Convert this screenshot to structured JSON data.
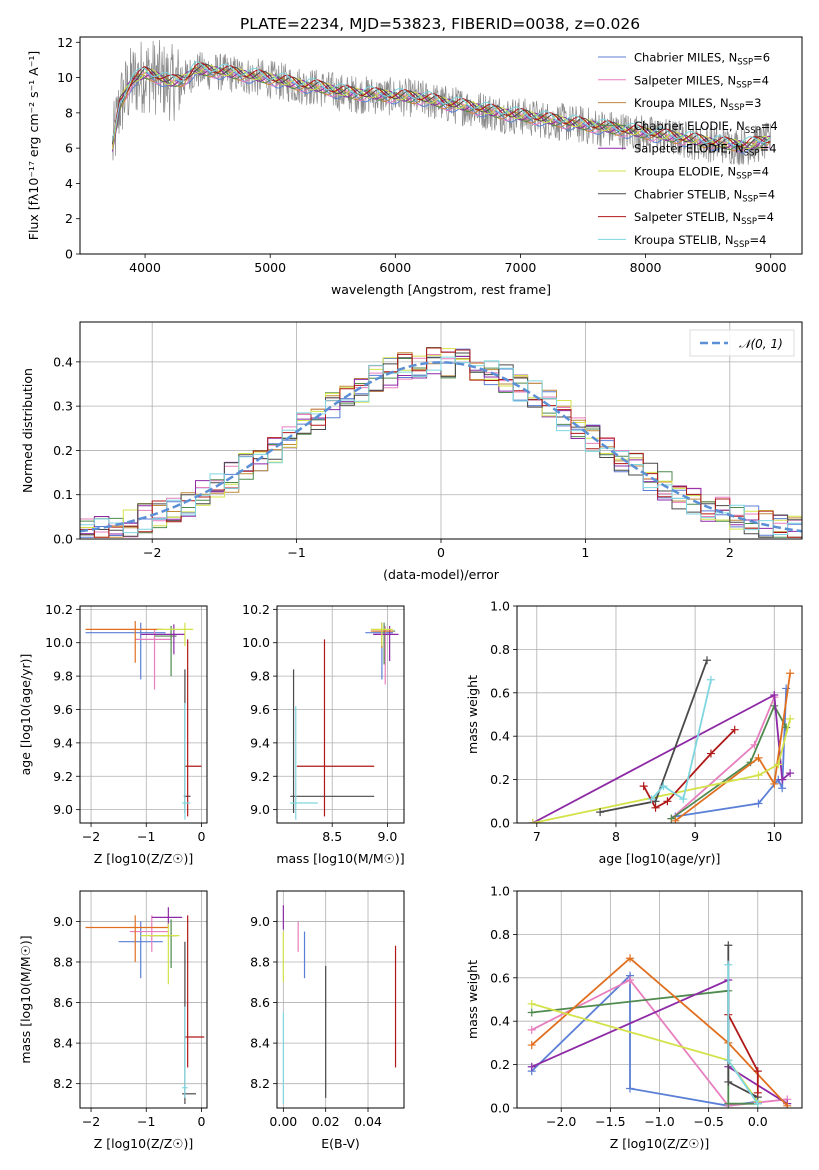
{
  "title": "PLATE=2234, MJD=53823, FIBERID=0038, z=0.026",
  "colors": [
    "#5b7fd6",
    "#e77fbf",
    "#c08a3a",
    "#4f8a4f",
    "#8e2aa6",
    "#d4e24a",
    "#4a4a4a",
    "#b01818",
    "#7fd6e0",
    "#e07020",
    "#e8de48"
  ],
  "chart_data": [
    {
      "type": "line",
      "name": "spectrum",
      "xlabel": "wavelength [Angstrom, rest frame]",
      "ylabel": "Flux [fλ10⁻¹⁷ erg cm⁻² s⁻¹ A⁻¹]",
      "xlim": [
        3480,
        9250
      ],
      "ylim": [
        0,
        12.3
      ],
      "xticks": [
        4000,
        5000,
        6000,
        7000,
        8000,
        9000
      ],
      "yticks": [
        0,
        2,
        4,
        6,
        8,
        10,
        12
      ],
      "grid": false,
      "legend": "top-right",
      "continuum": {
        "x": [
          3740,
          3800,
          3900,
          4000,
          4100,
          4200,
          4300,
          4400,
          4600,
          4800,
          5000,
          5200,
          5400,
          5600,
          5800,
          6000,
          6200,
          6400,
          6600,
          6800,
          7000,
          7200,
          7400,
          7600,
          7800,
          8000,
          8200,
          8400,
          8600,
          8800,
          9000
        ],
        "y": [
          6.0,
          8.5,
          9.8,
          10.2,
          10.0,
          9.7,
          9.8,
          10.4,
          10.3,
          10.1,
          9.9,
          9.6,
          9.4,
          9.1,
          9.0,
          8.9,
          8.8,
          8.5,
          8.3,
          8.0,
          7.8,
          7.6,
          7.4,
          7.2,
          7.0,
          6.8,
          6.6,
          6.4,
          6.2,
          6.1,
          6.4
        ]
      },
      "series": [
        {
          "name": "Chabrier MILES, N_SSP=6",
          "color": "#5b7fd6"
        },
        {
          "name": "Salpeter MILES, N_SSP=4",
          "color": "#e77fbf"
        },
        {
          "name": "Kroupa MILES, N_SSP=3",
          "color": "#c08a3a"
        },
        {
          "name": "Chabrier ELODIE, N_SSP=4",
          "color": "#4f8a4f"
        },
        {
          "name": "Salpeter ELODIE, N_SSP=4",
          "color": "#8e2aa6"
        },
        {
          "name": "Kroupa ELODIE, N_SSP=4",
          "color": "#d4e24a"
        },
        {
          "name": "Chabrier STELIB, N_SSP=4",
          "color": "#4a4a4a"
        },
        {
          "name": "Salpeter STELIB, N_SSP=4",
          "color": "#b01818"
        },
        {
          "name": "Kroupa STELIB, N_SSP=4",
          "color": "#7fd6e0"
        }
      ]
    },
    {
      "type": "line",
      "name": "residuals",
      "xlabel": "(data-model)/error",
      "ylabel": "Normed distribution",
      "xlim": [
        -2.5,
        2.5
      ],
      "ylim": [
        0,
        0.49
      ],
      "xticks": [
        -2,
        -1,
        0,
        1,
        2
      ],
      "yticks": [
        0.0,
        0.1,
        0.2,
        0.3,
        0.4
      ],
      "grid": true,
      "legend": "top-right",
      "gaussian_label": "𝒩(0, 1)",
      "bin_width": 0.1
    },
    {
      "type": "scatter",
      "name": "age-vs-metallicity",
      "xlabel": "Z [log10(Z/Z☉)]",
      "ylabel": "age [log10(age/yr)]",
      "xlim": [
        -2.2,
        0.1
      ],
      "ylim": [
        8.92,
        10.22
      ],
      "xticks": [
        -2,
        -1,
        0
      ],
      "yticks": [
        9.0,
        9.2,
        9.4,
        9.6,
        9.8,
        10.0,
        10.2
      ],
      "grid": true,
      "points": [
        {
          "x": -1.1,
          "y": 10.06,
          "xerr": [
            1.0,
            0.45
          ],
          "yerr": [
            0.28,
            0.06
          ],
          "c": "#5b7fd6"
        },
        {
          "x": -0.85,
          "y": 10.02,
          "xerr": [
            0.35,
            0.3
          ],
          "yerr": [
            0.3,
            0.06
          ],
          "c": "#e77fbf"
        },
        {
          "x": -0.55,
          "y": 10.04,
          "xerr": [
            0.3,
            0.1
          ],
          "yerr": [
            0.24,
            0.06
          ],
          "c": "#4f8a4f"
        },
        {
          "x": -0.5,
          "y": 10.05,
          "xerr": [
            0.6,
            0.2
          ],
          "yerr": [
            0.12,
            0.06
          ],
          "c": "#8e2aa6"
        },
        {
          "x": -1.2,
          "y": 10.08,
          "xerr": [
            0.9,
            0.5
          ],
          "yerr": [
            0.2,
            0.05
          ],
          "c": "#e07020"
        },
        {
          "x": -0.3,
          "y": 10.08,
          "xerr": [
            0.5,
            0.15
          ],
          "yerr": [
            0.1,
            0.04
          ],
          "c": "#d4e24a"
        },
        {
          "x": -0.3,
          "y": 9.08,
          "xerr": [
            0.02,
            0.1
          ],
          "yerr": [
            0.1,
            0.76
          ],
          "c": "#4a4a4a"
        },
        {
          "x": -0.25,
          "y": 9.26,
          "xerr": [
            0.05,
            0.25
          ],
          "yerr": [
            0.3,
            0.76
          ],
          "c": "#b01818"
        },
        {
          "x": -0.3,
          "y": 9.04,
          "xerr": [
            0.05,
            0.1
          ],
          "yerr": [
            0.1,
            0.6
          ],
          "c": "#7fd6e0"
        }
      ]
    },
    {
      "type": "scatter",
      "name": "age-vs-mass",
      "xlabel": "mass [log10(M/M☉)]",
      "ylabel": "",
      "xlim": [
        8.0,
        9.15
      ],
      "ylim": [
        8.92,
        10.22
      ],
      "xticks": [
        8.5,
        9.0
      ],
      "yticks": [
        9.0,
        9.2,
        9.4,
        9.6,
        9.8,
        10.0,
        10.2
      ],
      "grid": true,
      "points": [
        {
          "x": 8.95,
          "y": 10.06,
          "xerr": [
            0.15,
            0.1
          ],
          "yerr": [
            0.28,
            0.06
          ],
          "c": "#5b7fd6"
        },
        {
          "x": 8.98,
          "y": 10.05,
          "xerr": [
            0.1,
            0.08
          ],
          "yerr": [
            0.3,
            0.05
          ],
          "c": "#e77fbf"
        },
        {
          "x": 8.97,
          "y": 10.07,
          "xerr": [
            0.1,
            0.1
          ],
          "yerr": [
            0.2,
            0.05
          ],
          "c": "#4f8a4f"
        },
        {
          "x": 9.02,
          "y": 10.05,
          "xerr": [
            0.15,
            0.08
          ],
          "yerr": [
            0.16,
            0.05
          ],
          "c": "#8e2aa6"
        },
        {
          "x": 8.95,
          "y": 10.07,
          "xerr": [
            0.1,
            0.1
          ],
          "yerr": [
            0.1,
            0.05
          ],
          "c": "#e07020"
        },
        {
          "x": 8.95,
          "y": 10.08,
          "xerr": [
            0.1,
            0.1
          ],
          "yerr": [
            0.1,
            0.04
          ],
          "c": "#d4e24a"
        },
        {
          "x": 8.15,
          "y": 9.08,
          "xerr": [
            0.03,
            0.73
          ],
          "yerr": [
            0.1,
            0.76
          ],
          "c": "#4a4a4a"
        },
        {
          "x": 8.43,
          "y": 9.26,
          "xerr": [
            0.25,
            0.45
          ],
          "yerr": [
            0.3,
            0.76
          ],
          "c": "#b01818"
        },
        {
          "x": 8.17,
          "y": 9.04,
          "xerr": [
            0.05,
            0.2
          ],
          "yerr": [
            0.1,
            0.58
          ],
          "c": "#7fd6e0"
        }
      ]
    },
    {
      "type": "line",
      "name": "weight-vs-age",
      "xlabel": "age [log10(age/yr)]",
      "ylabel": "mass weight",
      "xlim": [
        6.75,
        10.35
      ],
      "ylim": [
        0.0,
        1.0
      ],
      "xticks": [
        7,
        8,
        9,
        10
      ],
      "yticks": [
        0.0,
        0.2,
        0.4,
        0.6,
        0.8,
        1.0
      ],
      "grid": true,
      "series": [
        {
          "c": "#5b7fd6",
          "x": [
            8.75,
            9.8,
            10.05,
            10.1,
            10.15
          ],
          "y": [
            0.03,
            0.09,
            0.2,
            0.16,
            0.62
          ]
        },
        {
          "c": "#e77fbf",
          "x": [
            8.7,
            9.75,
            10.0
          ],
          "y": [
            0.02,
            0.36,
            0.58
          ]
        },
        {
          "c": "#4f8a4f",
          "x": [
            8.7,
            9.7,
            10.0,
            10.15
          ],
          "y": [
            0.02,
            0.28,
            0.54,
            0.44
          ]
        },
        {
          "c": "#8e2aa6",
          "x": [
            6.95,
            10.0,
            10.1,
            10.2
          ],
          "y": [
            0.0,
            0.59,
            0.2,
            0.23
          ]
        },
        {
          "c": "#e07020",
          "x": [
            8.75,
            9.8,
            10.0,
            10.2
          ],
          "y": [
            0.01,
            0.3,
            0.18,
            0.69
          ]
        },
        {
          "c": "#d4e24a",
          "x": [
            6.95,
            9.8,
            10.05,
            10.2
          ],
          "y": [
            0.0,
            0.22,
            0.27,
            0.48
          ]
        },
        {
          "c": "#4a4a4a",
          "x": [
            7.8,
            8.5,
            9.15
          ],
          "y": [
            0.05,
            0.1,
            0.75
          ]
        },
        {
          "c": "#b01818",
          "x": [
            8.35,
            8.5,
            8.65,
            9.2,
            9.5
          ],
          "y": [
            0.17,
            0.07,
            0.1,
            0.32,
            0.43
          ]
        },
        {
          "c": "#7fd6e0",
          "x": [
            8.45,
            8.6,
            8.85,
            9.2
          ],
          "y": [
            0.11,
            0.17,
            0.11,
            0.66
          ]
        }
      ]
    },
    {
      "type": "scatter",
      "name": "mass-vs-metallicity",
      "xlabel": "Z [log10(Z/Z☉)]",
      "ylabel": "mass [log10(M/M☉)]",
      "xlim": [
        -2.2,
        0.1
      ],
      "ylim": [
        8.08,
        9.15
      ],
      "xticks": [
        -2,
        -1,
        0
      ],
      "yticks": [
        8.2,
        8.4,
        8.6,
        8.8,
        9.0
      ],
      "grid": true,
      "points": [
        {
          "x": -1.1,
          "y": 8.9,
          "xerr": [
            0.4,
            0.4
          ],
          "yerr": [
            0.18,
            0.1
          ],
          "c": "#5b7fd6"
        },
        {
          "x": -0.9,
          "y": 8.95,
          "xerr": [
            0.4,
            0.3
          ],
          "yerr": [
            0.1,
            0.08
          ],
          "c": "#e77fbf"
        },
        {
          "x": -0.55,
          "y": 8.93,
          "xerr": [
            0.4,
            0.1
          ],
          "yerr": [
            0.16,
            0.08
          ],
          "c": "#4f8a4f"
        },
        {
          "x": -0.6,
          "y": 9.02,
          "xerr": [
            0.3,
            0.25
          ],
          "yerr": [
            0.05,
            0.05
          ],
          "c": "#8e2aa6"
        },
        {
          "x": -1.2,
          "y": 8.97,
          "xerr": [
            0.9,
            0.6
          ],
          "yerr": [
            0.17,
            0.06
          ],
          "c": "#e07020"
        },
        {
          "x": -0.6,
          "y": 8.93,
          "xerr": [
            0.5,
            0.2
          ],
          "yerr": [
            0.24,
            0.06
          ],
          "c": "#d4e24a"
        },
        {
          "x": -0.3,
          "y": 8.15,
          "xerr": [
            0.05,
            0.2
          ],
          "yerr": [
            0.05,
            0.75
          ],
          "c": "#4a4a4a"
        },
        {
          "x": -0.25,
          "y": 8.43,
          "xerr": [
            0.05,
            0.3
          ],
          "yerr": [
            0.15,
            0.6
          ],
          "c": "#b01818"
        },
        {
          "x": -0.3,
          "y": 8.18,
          "xerr": [
            0.05,
            0.05
          ],
          "yerr": [
            0.05,
            0.4
          ],
          "c": "#7fd6e0"
        }
      ]
    },
    {
      "type": "scatter",
      "name": "mass-vs-reddening",
      "xlabel": "E(B-V)",
      "ylabel": "",
      "xlim": [
        -0.003,
        0.057
      ],
      "ylim": [
        8.08,
        9.15
      ],
      "xticks": [
        0.0,
        0.02,
        0.04
      ],
      "yticks": [
        8.2,
        8.4,
        8.6,
        8.8,
        9.0
      ],
      "grid": true,
      "points": [
        {
          "x": 0.01,
          "y": 8.82,
          "yerr": [
            0.1,
            0.13
          ],
          "c": "#5b7fd6"
        },
        {
          "x": 0.007,
          "y": 8.95,
          "yerr": [
            0.1,
            0.05
          ],
          "c": "#e77fbf"
        },
        {
          "x": 0.0,
          "y": 9.02,
          "yerr": [
            0.06,
            0.06
          ],
          "c": "#8e2aa6"
        },
        {
          "x": 0.0,
          "y": 8.85,
          "yerr": [
            0.15,
            0.1
          ],
          "c": "#d4e24a"
        },
        {
          "x": 0.02,
          "y": 8.43,
          "yerr": [
            0.3,
            0.35
          ],
          "c": "#4a4a4a"
        },
        {
          "x": 0.053,
          "y": 8.58,
          "yerr": [
            0.3,
            0.3
          ],
          "c": "#b01818"
        },
        {
          "x": 0.0,
          "y": 8.35,
          "yerr": [
            0.25,
            0.2
          ],
          "c": "#7fd6e0"
        }
      ]
    },
    {
      "type": "line",
      "name": "weight-vs-metallicity",
      "xlabel": "Z [log10(Z/Z☉)]",
      "ylabel": "mass weight",
      "xlim": [
        -2.45,
        0.45
      ],
      "ylim": [
        0.0,
        1.0
      ],
      "xticks": [
        -2.0,
        -1.5,
        -1.0,
        -0.5,
        0.0
      ],
      "yticks": [
        0.0,
        0.2,
        0.4,
        0.6,
        0.8,
        1.0
      ],
      "grid": true,
      "series": [
        {
          "c": "#5b7fd6",
          "x": [
            -2.3,
            -1.3,
            -1.3,
            -0.3,
            0.0
          ],
          "y": [
            0.17,
            0.61,
            0.09,
            0.01,
            0.03
          ]
        },
        {
          "c": "#e77fbf",
          "x": [
            -2.3,
            -1.3,
            -0.3,
            0.3
          ],
          "y": [
            0.36,
            0.59,
            0.01,
            0.04
          ]
        },
        {
          "c": "#4f8a4f",
          "x": [
            -2.3,
            -0.3,
            -0.3,
            0.0
          ],
          "y": [
            0.44,
            0.54,
            0.02,
            0.02
          ]
        },
        {
          "c": "#8e2aa6",
          "x": [
            -2.3,
            -0.3,
            -0.3,
            0.3
          ],
          "y": [
            0.19,
            0.59,
            0.19,
            0.02
          ]
        },
        {
          "c": "#e07020",
          "x": [
            -2.3,
            -1.3,
            -0.3,
            0.3
          ],
          "y": [
            0.29,
            0.69,
            0.3,
            0.01
          ]
        },
        {
          "c": "#d4e24a",
          "x": [
            -2.3,
            -0.3,
            0.0
          ],
          "y": [
            0.48,
            0.22,
            0.03
          ]
        },
        {
          "c": "#4a4a4a",
          "x": [
            -0.3,
            -0.3,
            0.0
          ],
          "y": [
            0.75,
            0.12,
            0.05
          ]
        },
        {
          "c": "#b01818",
          "x": [
            -0.3,
            0.0,
            0.0
          ],
          "y": [
            0.43,
            0.17,
            0.07
          ]
        },
        {
          "c": "#7fd6e0",
          "x": [
            -0.3,
            -0.3,
            0.0
          ],
          "y": [
            0.66,
            0.22,
            0.02
          ]
        }
      ]
    }
  ]
}
